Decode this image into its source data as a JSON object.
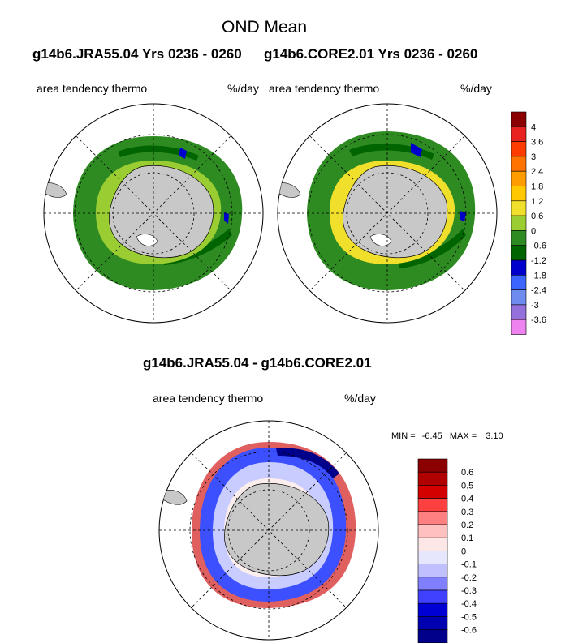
{
  "page": {
    "title": "OND Mean",
    "left_run": "g14b6.JRA55.04  Yrs 0236 - 0260",
    "right_run": "g14b6.CORE2.01  Yrs 0236 - 0260",
    "diff_title": "g14b6.JRA55.04 - g14b6.CORE2.01"
  },
  "panels": {
    "left": {
      "variable": "area tendency thermo",
      "units": "%/day"
    },
    "right": {
      "variable": "area tendency thermo",
      "units": "%/day"
    },
    "diff": {
      "variable": "area tendency thermo",
      "units": "%/day",
      "min_label": "MIN =",
      "min": "-6.45",
      "max_label": "MAX =",
      "max": "3.10"
    }
  },
  "colorbar_top": {
    "labels": [
      "4",
      "3.6",
      "3",
      "2.4",
      "1.8",
      "1.2",
      "0.6",
      "0",
      "-0.6",
      "-1.2",
      "-1.8",
      "-2.4",
      "-3",
      "-3.6"
    ],
    "colors": [
      "#8b0000",
      "#e8231f",
      "#ff3c00",
      "#ff7300",
      "#ff9c00",
      "#ffc800",
      "#f0e02c",
      "#9acd32",
      "#2e8b22",
      "#006400",
      "#0000cd",
      "#3c64ff",
      "#6e8cf0",
      "#9370db",
      "#ee82ee"
    ]
  },
  "colorbar_diff": {
    "labels": [
      "0.6",
      "0.5",
      "0.4",
      "0.3",
      "0.2",
      "0.1",
      "0",
      "-0.1",
      "-0.2",
      "-0.3",
      "-0.4",
      "-0.5",
      "-0.6"
    ],
    "colors": [
      "#8b0000",
      "#b00000",
      "#d40000",
      "#ff4040",
      "#ff8080",
      "#ffc0c0",
      "#fde6e6",
      "#e6e6fd",
      "#c0c0ff",
      "#8080ff",
      "#4040ff",
      "#0000d4",
      "#0000b0",
      "#00008b"
    ]
  }
}
